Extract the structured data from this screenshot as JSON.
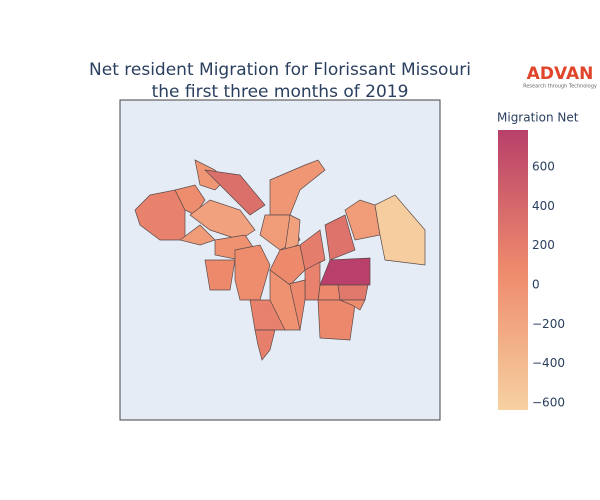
{
  "chart_data": {
    "type": "choropleth",
    "title": [
      "Net resident Migration for Florissant Missouri",
      "the first three months of 2019"
    ],
    "logo": "ADVAN",
    "logo_subtitle": "Research through Technology",
    "colorbar_title": "Migration Net",
    "colorscale": [
      "#f6d1a1",
      "#ee8a6c",
      "#b8406a"
    ],
    "clim": [
      -636,
      789
    ],
    "cticks": [
      {
        "value": -600,
        "label": "−600"
      },
      {
        "value": -400,
        "label": "−400"
      },
      {
        "value": -200,
        "label": "−200"
      },
      0,
      200,
      400,
      600
    ],
    "values": [
      150,
      50,
      -50,
      330,
      -150,
      -100,
      0,
      80,
      50,
      -50,
      -100,
      -150,
      80,
      200,
      300,
      -100,
      -600,
      790,
      100,
      250,
      150,
      100,
      150,
      0,
      100,
      50,
      180
    ]
  }
}
